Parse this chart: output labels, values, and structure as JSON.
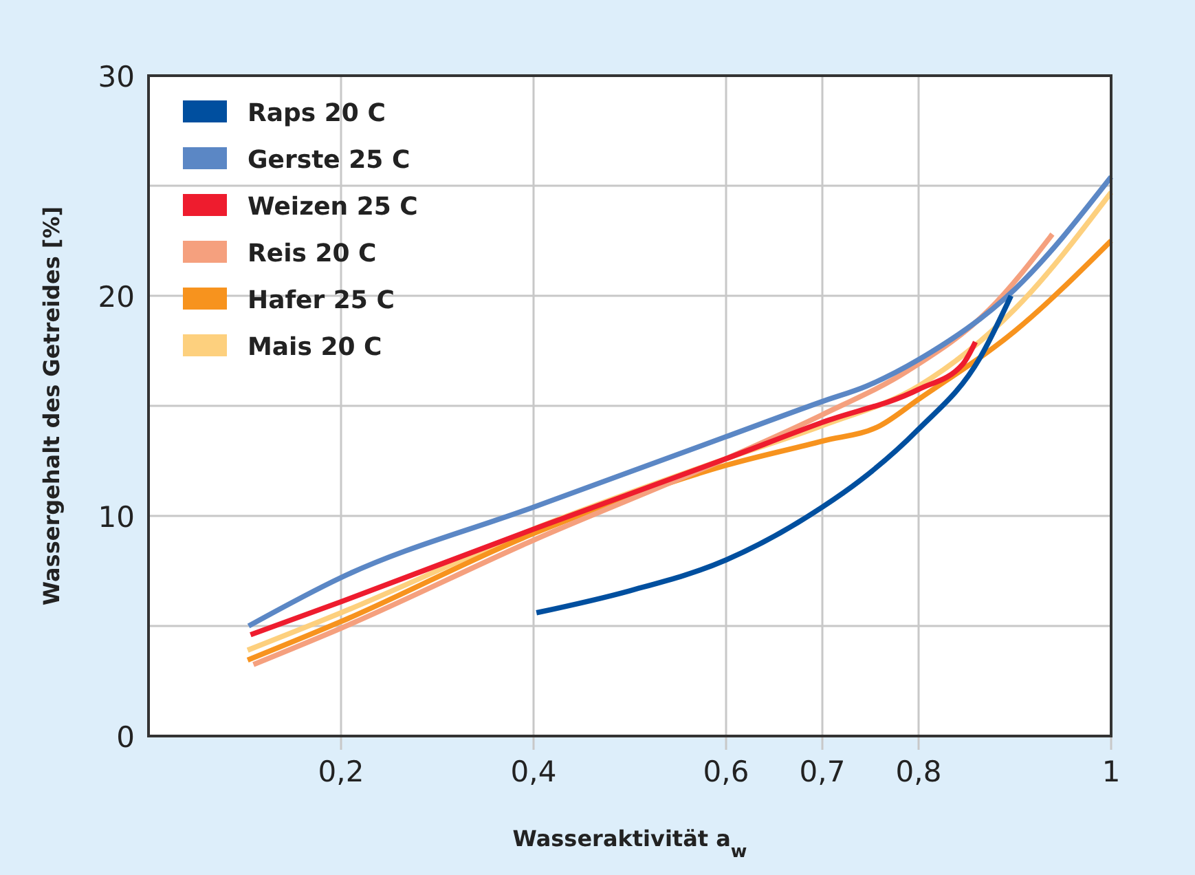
{
  "chart_data": {
    "type": "line",
    "xlabel": "Wasseraktivität a$_{w}$",
    "ylabel": "Wassergehalt des Getreides [%]",
    "xlim": [
      0,
      1
    ],
    "ylim": [
      0,
      30
    ],
    "xticks": [
      {
        "value": 0.2,
        "label": "0,2"
      },
      {
        "value": 0.4,
        "label": "0,4"
      },
      {
        "value": 0.6,
        "label": "0,6"
      },
      {
        "value": 0.7,
        "label": "0,7"
      },
      {
        "value": 0.8,
        "label": "0,8"
      },
      1
    ],
    "yticks": [
      0,
      {
        "value": 5,
        "label": null
      },
      10,
      {
        "value": 15,
        "label": null
      },
      20,
      {
        "value": 25,
        "label": null
      },
      30
    ],
    "grid": true,
    "legend": "top left",
    "marker": "none",
    "line_style": "solid",
    "series": [
      {
        "name": "Raps 20 C",
        "color": "#004f9f",
        "x": [
          0.403,
          0.5,
          0.6,
          0.7,
          0.739,
          0.799,
          0.864,
          0.896
        ],
        "values": [
          5.6,
          6.6,
          8.0,
          10.4,
          11.6,
          13.9,
          17.2,
          20.0
        ]
      },
      {
        "name": "Gerste 25 C",
        "color": "#5b87c5",
        "x": [
          0.104,
          0.2,
          0.4,
          0.6,
          0.7,
          0.746,
          0.8,
          0.9,
          1
        ],
        "values": [
          5.0,
          7.2,
          10.4,
          13.6,
          15.2,
          15.9,
          17.1,
          20.3,
          25.4
        ]
      },
      {
        "name": "Weizen 25 C",
        "color": "#ee1c2e",
        "x": [
          0.106,
          0.2,
          0.4,
          0.6,
          0.7,
          0.8,
          0.846,
          0.859
        ],
        "values": [
          4.6,
          6.1,
          9.4,
          12.6,
          14.25,
          15.75,
          16.9,
          17.9
        ]
      },
      {
        "name": "Reis 20 C",
        "color": "#f5a07e",
        "x": [
          0.109,
          0.2,
          0.4,
          0.6,
          0.7,
          0.789,
          0.874,
          0.939
        ],
        "values": [
          3.25,
          4.9,
          8.9,
          12.6,
          14.6,
          16.6,
          19.4,
          22.8
        ]
      },
      {
        "name": "Hafer 25 C",
        "color": "#f7931e",
        "x": [
          0.103,
          0.2,
          0.4,
          0.6,
          0.7,
          0.76,
          0.8,
          0.9,
          1
        ],
        "values": [
          3.45,
          5.2,
          9.2,
          12.3,
          13.4,
          14.1,
          15.3,
          18.4,
          22.5
        ]
      },
      {
        "name": "Mais 20 C",
        "color": "#fdd07e",
        "x": [
          0.103,
          0.2,
          0.4,
          0.6,
          0.7,
          0.8,
          0.9,
          1
        ],
        "values": [
          3.9,
          5.6,
          9.4,
          12.6,
          14.1,
          15.9,
          19.4,
          24.7
        ]
      }
    ]
  }
}
